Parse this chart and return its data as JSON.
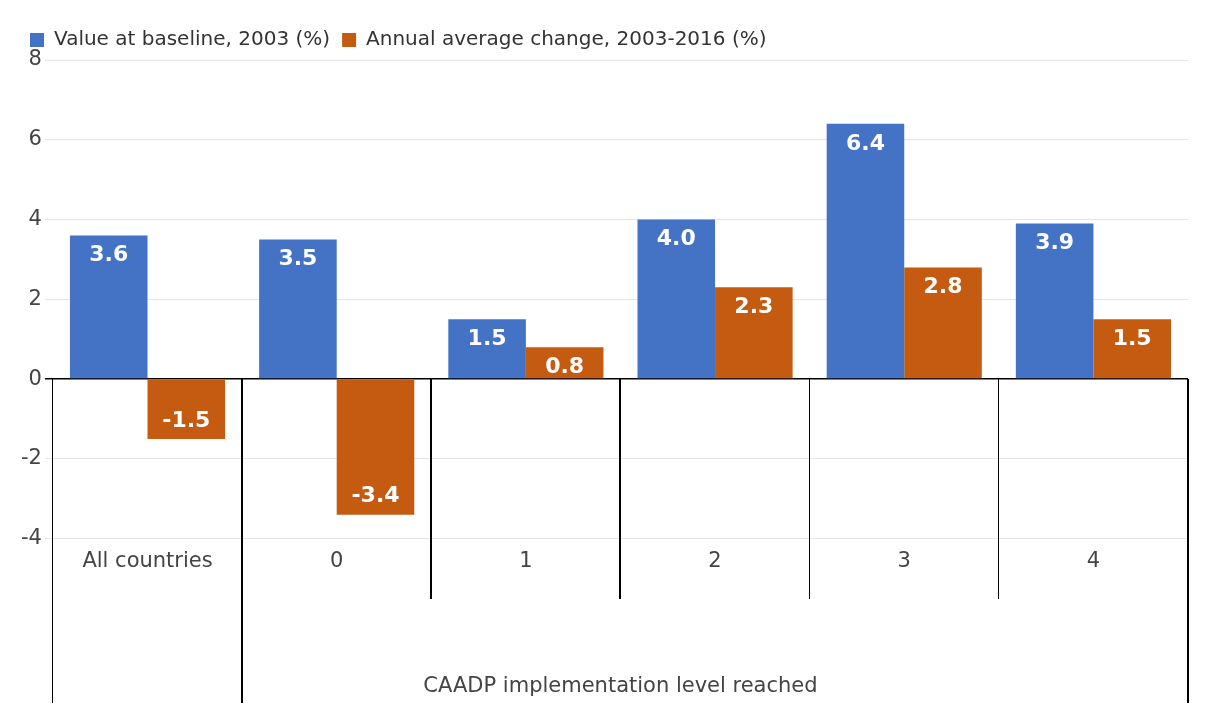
{
  "chart_data": {
    "type": "bar",
    "categories": [
      "All countries",
      "0",
      "1",
      "2",
      "3",
      "4"
    ],
    "series": [
      {
        "name": "Value at baseline, 2003 (%)",
        "color": "#4472c4",
        "values": [
          3.6,
          3.5,
          1.5,
          4.0,
          6.4,
          3.9
        ]
      },
      {
        "name": "Annual average change, 2003-2016 (%)",
        "color": "#c55a11",
        "values": [
          -1.5,
          -3.4,
          0.8,
          2.3,
          2.8,
          1.5
        ]
      }
    ],
    "value_labels": [
      [
        "3.6",
        "3.5",
        "1.5",
        "4.0",
        "6.4",
        "3.9"
      ],
      [
        "-1.5",
        "-3.4",
        "0.8",
        "2.3",
        "2.8",
        "1.5"
      ]
    ],
    "xlabel": "CAADP implementation level reached",
    "ylim": [
      -4,
      8
    ],
    "yticks": [
      -4,
      -2,
      0,
      2,
      4,
      6,
      8
    ],
    "grid": "y",
    "legend": "top left"
  }
}
